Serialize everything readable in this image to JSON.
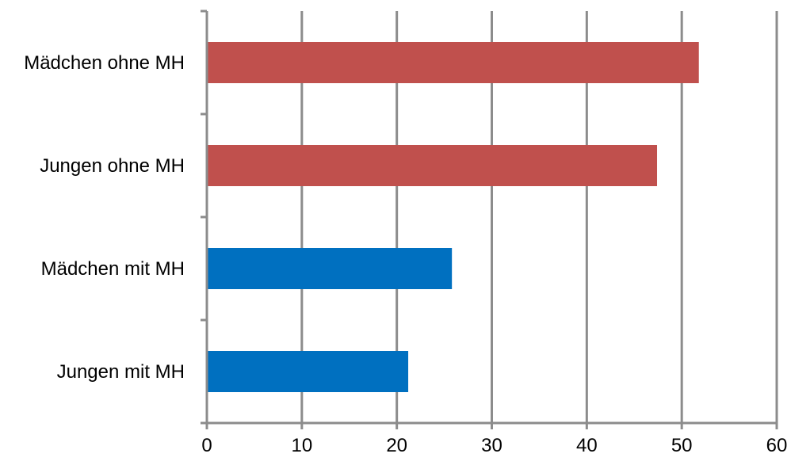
{
  "chart_data": {
    "type": "bar",
    "orientation": "horizontal",
    "categories": [
      "Mädchen ohne MH",
      "Jungen ohne MH",
      "Mädchen mit MH",
      "Jungen mit MH"
    ],
    "values": [
      51.8,
      47.4,
      25.8,
      21.2
    ],
    "bar_colors": [
      "#C0504D",
      "#C0504D",
      "#0070C0",
      "#0070C0"
    ],
    "title": "",
    "xlabel": "",
    "ylabel": "",
    "xlim": [
      0,
      60
    ],
    "x_ticks": [
      0,
      10,
      20,
      30,
      40,
      50,
      60
    ],
    "grid": "vertical",
    "legend": "none"
  },
  "colors": {
    "grid": "#8C8C8C",
    "axis": "#8C8C8C",
    "text": "#000000"
  }
}
